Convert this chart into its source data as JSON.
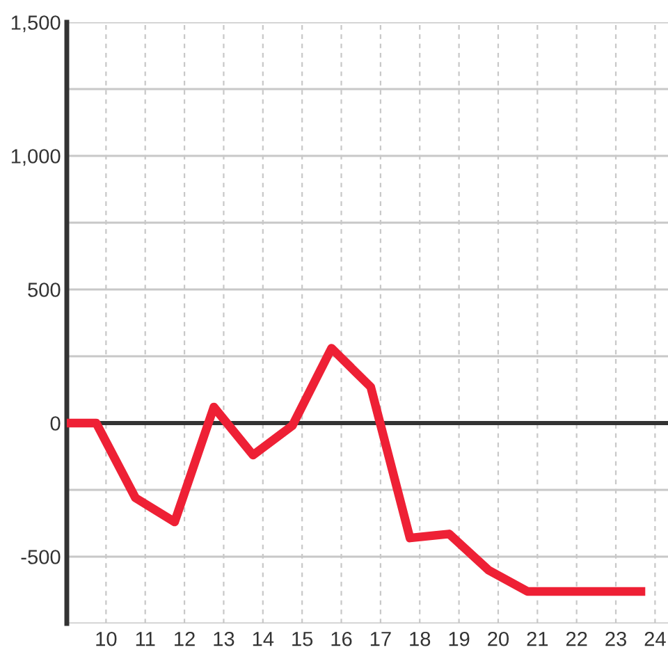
{
  "chart_data": {
    "type": "line",
    "x": [
      9,
      9.75,
      10.75,
      11.75,
      12.75,
      13.75,
      14.75,
      15.75,
      16.75,
      17.75,
      18.75,
      19.75,
      20.75,
      21.75,
      22.75,
      23.75
    ],
    "series": [
      {
        "color": "#ee2035",
        "values": [
          0,
          0,
          -280,
          -370,
          60,
          -120,
          -10,
          280,
          135,
          -430,
          -415,
          -550,
          -630,
          -630,
          -630,
          -630
        ]
      }
    ],
    "xlim": [
      9,
      24.33
    ],
    "xticks": [
      10,
      11,
      12,
      13,
      14,
      15,
      16,
      17,
      18,
      19,
      20,
      21,
      22,
      23,
      24
    ],
    "ylim": [
      -750,
      1500
    ],
    "yticks": [
      {
        "value": -750,
        "label": null
      },
      -500,
      {
        "value": -250,
        "label": null
      },
      0,
      {
        "value": 250,
        "label": null
      },
      500,
      {
        "value": 750,
        "label": null
      },
      {
        "value": 1000,
        "label": "1,000"
      },
      {
        "value": 1250,
        "label": null
      },
      {
        "value": 1500,
        "label": "1,500"
      }
    ],
    "ref_lines": [
      {
        "axis": "y",
        "value": 0,
        "color": "#333333"
      }
    ],
    "grid": true,
    "marker": "none",
    "line_style": "solid"
  }
}
